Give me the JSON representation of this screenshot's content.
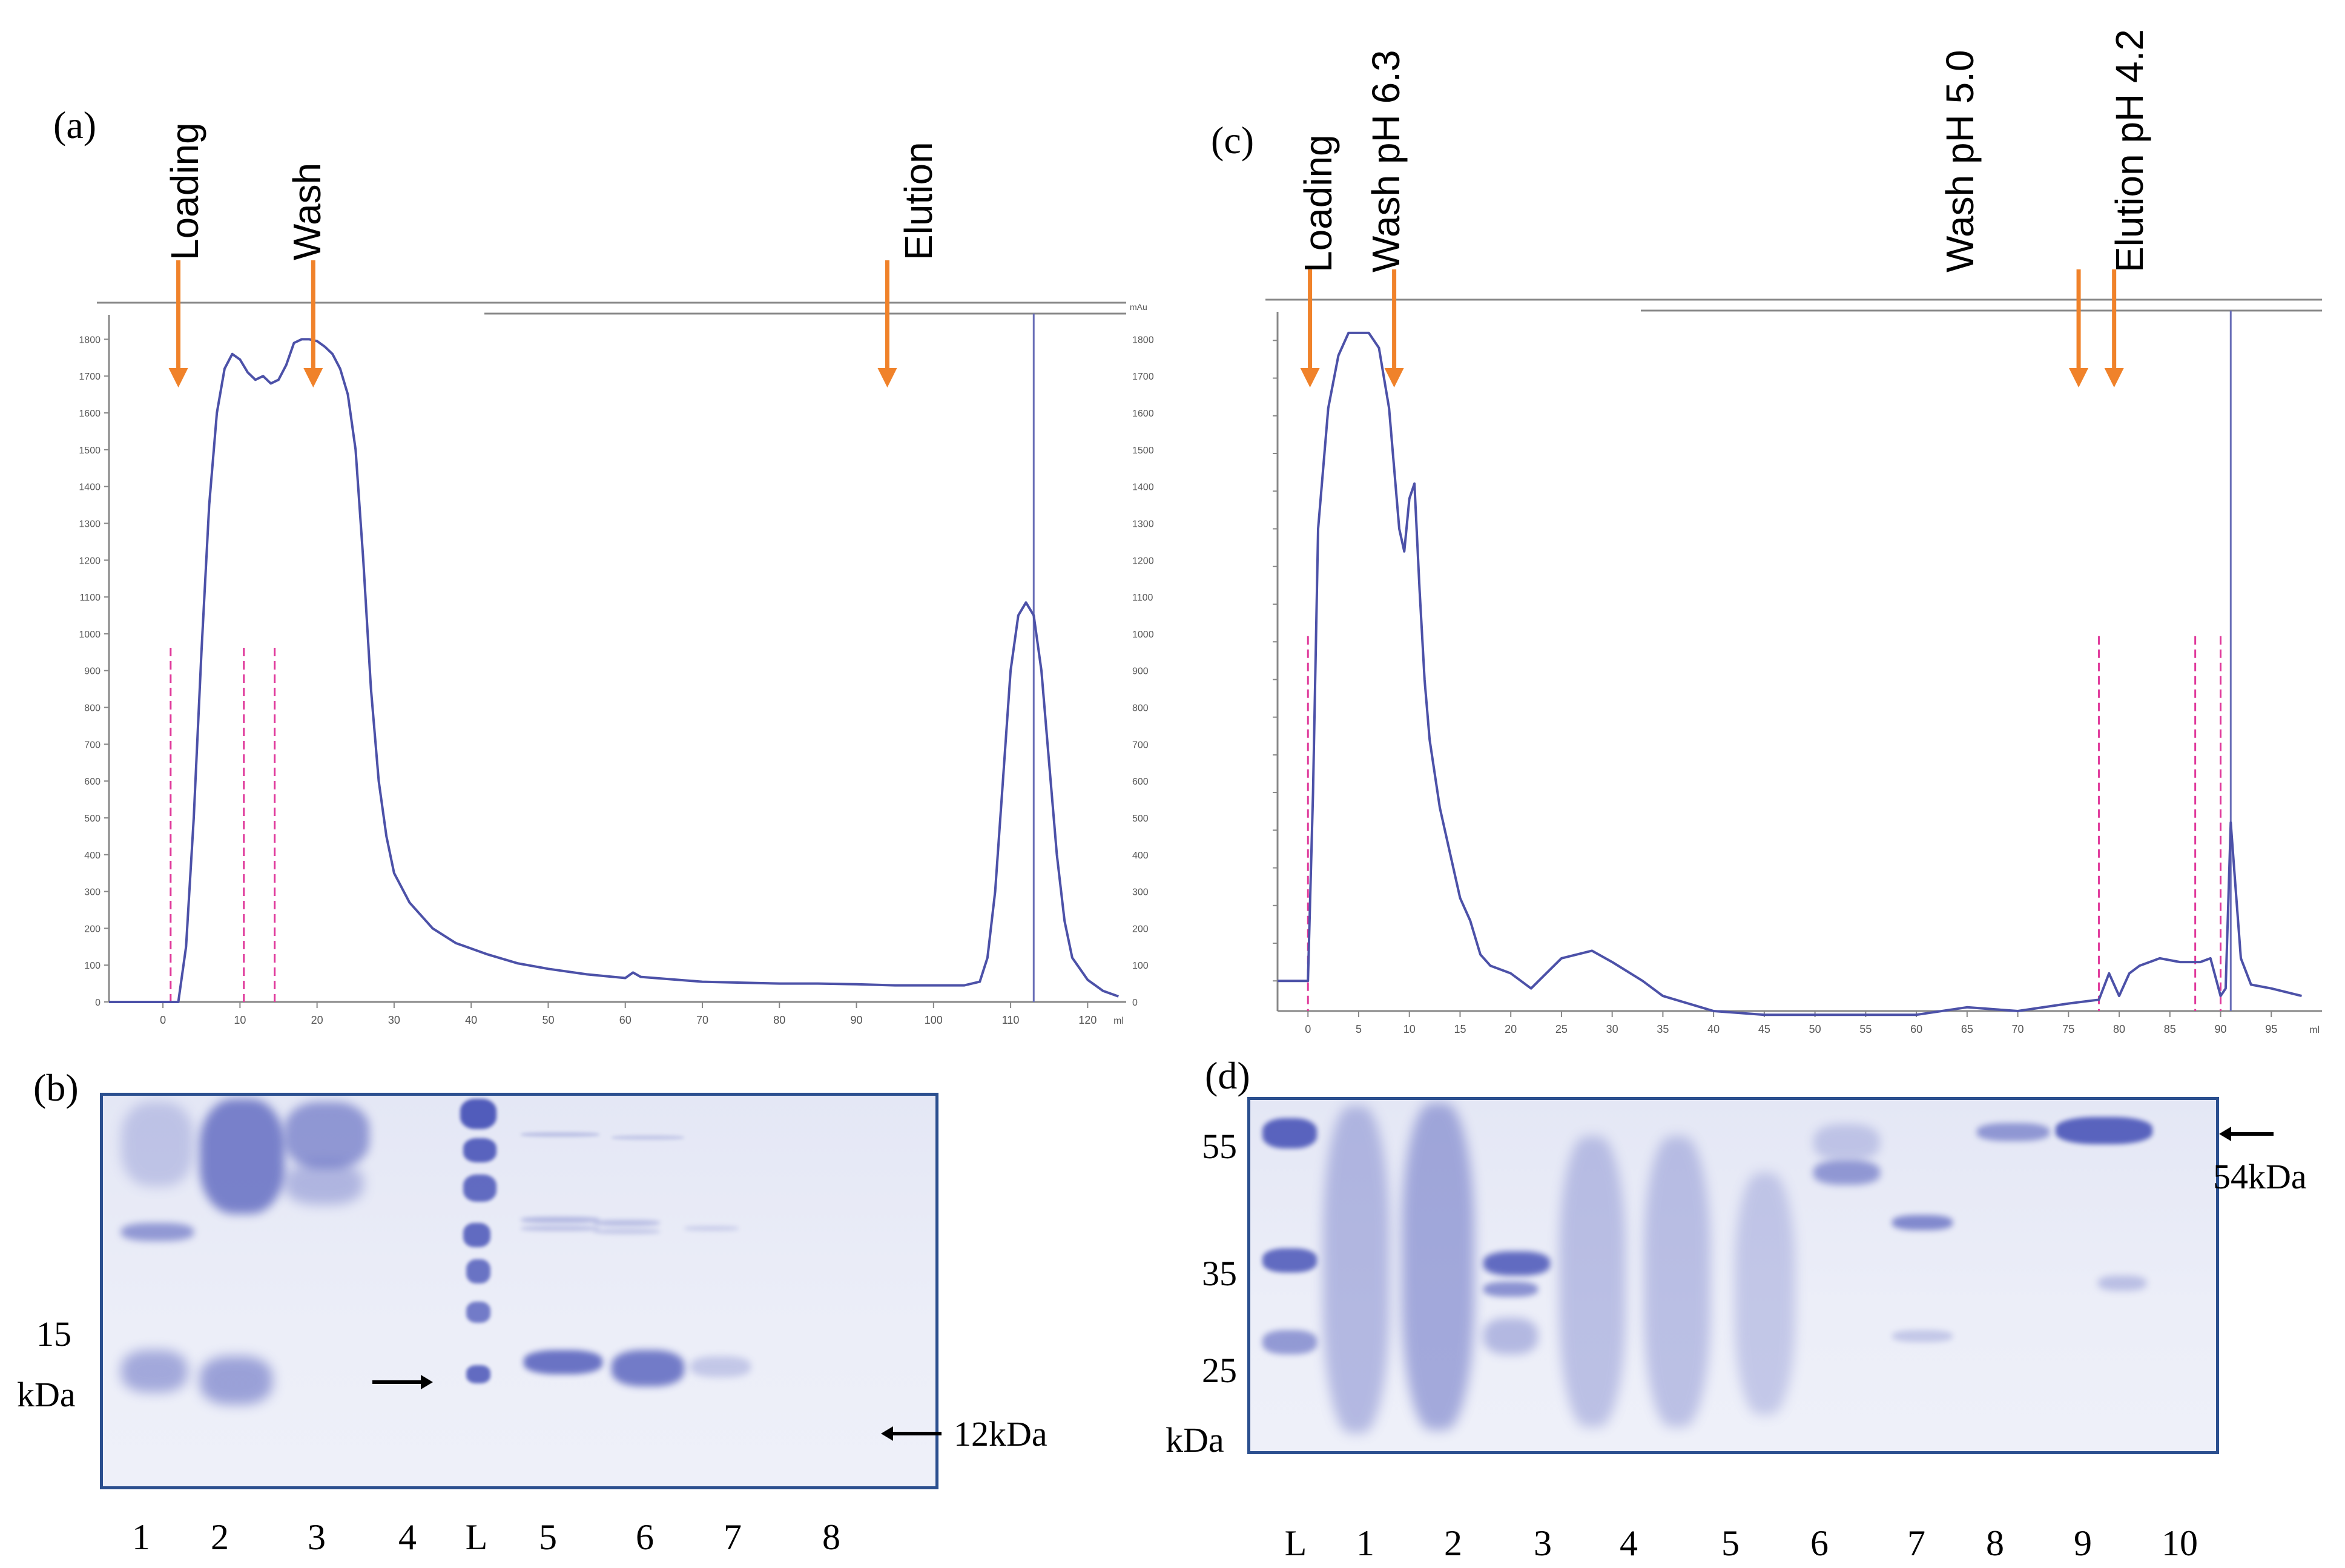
{
  "panels": {
    "a": {
      "label": "(a)",
      "annotations": [
        "Loading",
        "Wash",
        "Elution"
      ],
      "chart_data": {
        "type": "line",
        "y_ticks_left": [
          "0",
          "100",
          "200",
          "300",
          "400",
          "500",
          "600",
          "700",
          "800",
          "900",
          "1000",
          "1100",
          "1200",
          "1300",
          "1400",
          "1500",
          "1600",
          "1700",
          "1800"
        ],
        "x_ticks": [
          "0",
          "10",
          "20",
          "30",
          "40",
          "50",
          "60",
          "70",
          "80",
          "90",
          "100",
          "110",
          "120"
        ],
        "x_unit": "ml",
        "y_unit": "mAu",
        "xlim": [
          -7,
          125
        ],
        "ylim": [
          0,
          1850
        ],
        "series": [
          {
            "x": [
              -7,
              2,
              3,
              4,
              5,
              6,
              7,
              8,
              9,
              10,
              11,
              12,
              13,
              14,
              15,
              16,
              17,
              18,
              19,
              20,
              21,
              22,
              23,
              24,
              25,
              26,
              27,
              28,
              29,
              30,
              32,
              35,
              38,
              42,
              46,
              50,
              55,
              60,
              61,
              62,
              70,
              80,
              85,
              90,
              95,
              100,
              104,
              106,
              107,
              108,
              109,
              110,
              111,
              112,
              113,
              114,
              115,
              116,
              117,
              118,
              120,
              122,
              124
            ],
            "y": [
              0,
              0,
              150,
              500,
              950,
              1350,
              1600,
              1720,
              1760,
              1745,
              1710,
              1690,
              1700,
              1680,
              1690,
              1730,
              1790,
              1800,
              1800,
              1795,
              1780,
              1760,
              1720,
              1650,
              1500,
              1200,
              850,
              600,
              450,
              350,
              270,
              200,
              160,
              130,
              105,
              90,
              75,
              65,
              80,
              68,
              55,
              50,
              50,
              48,
              45,
              45,
              45,
              55,
              120,
              300,
              600,
              900,
              1050,
              1085,
              1050,
              900,
              650,
              400,
              220,
              120,
              60,
              30,
              15
            ]
          }
        ],
        "fraction_markers_x": [
          1,
          10.5,
          14.5
        ],
        "cursor_x": 113
      }
    },
    "b": {
      "label": "(b)",
      "left_marker_value": "15",
      "left_marker_unit": "kDa",
      "right_marker": "12kDa",
      "lanes": [
        "1",
        "2",
        "3",
        "4",
        "L",
        "5",
        "6",
        "7",
        "8"
      ]
    },
    "c": {
      "label": "(c)",
      "annotations": [
        "Loading",
        "Wash pH 6.3",
        "Wash pH 5.0",
        "Elution pH 4.2"
      ],
      "chart_data": {
        "type": "line",
        "x_ticks": [
          "0",
          "5",
          "10",
          "15",
          "20",
          "25",
          "30",
          "35",
          "40",
          "45",
          "50",
          "55",
          "60",
          "65",
          "70",
          "75",
          "80",
          "85",
          "90",
          "95"
        ],
        "x_unit": "ml",
        "xlim": [
          -3,
          100
        ],
        "ylim": [
          -40,
          880
        ],
        "series": [
          {
            "x": [
              -3,
              0,
              0.5,
              1,
              2,
              3,
              4,
              5,
              6,
              7,
              8,
              9,
              9.5,
              10,
              10.5,
              11,
              11.5,
              12,
              13,
              14,
              15,
              16,
              17,
              18,
              20,
              22,
              25,
              28,
              30,
              33,
              35,
              40,
              45,
              50,
              55,
              60,
              65,
              70,
              75,
              78,
              79,
              80,
              81,
              82,
              84,
              86,
              88,
              89,
              90,
              90.5,
              91,
              91.5,
              92,
              93,
              95,
              98
            ],
            "y": [
              0,
              0,
              250,
              600,
              760,
              830,
              860,
              860,
              860,
              840,
              760,
              600,
              570,
              640,
              660,
              520,
              400,
              320,
              230,
              170,
              110,
              80,
              35,
              20,
              10,
              -10,
              30,
              40,
              25,
              0,
              -20,
              -40,
              -45,
              -45,
              -45,
              -45,
              -35,
              -40,
              -30,
              -25,
              10,
              -20,
              10,
              20,
              30,
              25,
              25,
              30,
              -20,
              -10,
              210,
              120,
              30,
              -5,
              -10,
              -20
            ]
          }
        ],
        "fraction_markers_x": [
          0,
          78,
          87.5,
          90
        ],
        "cursor_x": 91
      }
    },
    "d": {
      "label": "(d)",
      "left_markers": [
        "55",
        "35",
        "25",
        "kDa"
      ],
      "right_marker": "54kDa",
      "lanes": [
        "L",
        "1",
        "2",
        "3",
        "4",
        "5",
        "6",
        "7",
        "8",
        "9",
        "10"
      ]
    }
  },
  "colors": {
    "trace": "#4c51a8",
    "marker": "#e0399b",
    "arrow": "#f0822a",
    "gel_border": "#2b4f8f",
    "band": "#4a55b8"
  }
}
